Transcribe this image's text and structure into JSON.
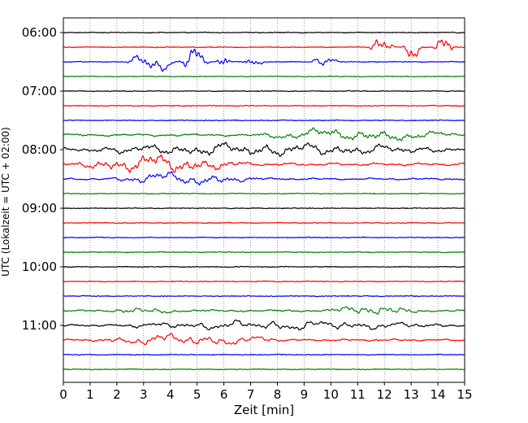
{
  "chart_data": {
    "type": "line",
    "xlabel": "Zeit  [min]",
    "ylabel": "UTC (Lokalzeit = UTC + 02:00)",
    "xlim": [
      0,
      15
    ],
    "x_ticks": [
      0,
      1,
      2,
      3,
      4,
      5,
      6,
      7,
      8,
      9,
      10,
      11,
      12,
      13,
      14,
      15
    ],
    "y_ticks": [
      "06:00",
      "07:00",
      "08:00",
      "09:00",
      "10:00",
      "11:00"
    ],
    "grid": "vertical dotted",
    "trace_interval_minutes": 15,
    "colors": {
      "black": "#000000",
      "red": "#ff0000",
      "blue": "#0000ff",
      "green": "#008000"
    },
    "traces": [
      {
        "time": "06:00",
        "color": "#000000",
        "activity": 0.0
      },
      {
        "time": "06:15",
        "color": "#ff0000",
        "activity": 0.0,
        "events": [
          [
            11.3,
            12.4,
            1.0
          ],
          [
            12.7,
            13.4,
            1.3
          ],
          [
            13.8,
            14.7,
            1.1
          ]
        ]
      },
      {
        "time": "06:30",
        "color": "#0000ff",
        "activity": 0.0,
        "events": [
          [
            2.3,
            4.2,
            0.9
          ],
          [
            4.3,
            5.5,
            1.4
          ],
          [
            5.7,
            6.3,
            1.2
          ],
          [
            6.6,
            7.5,
            0.6
          ],
          [
            9.2,
            10.3,
            0.6
          ]
        ]
      },
      {
        "time": "06:45",
        "color": "#008000",
        "activity": 0.0
      },
      {
        "time": "07:00",
        "color": "#000000",
        "activity": 0.0
      },
      {
        "time": "07:15",
        "color": "#ff0000",
        "activity": 0.0
      },
      {
        "time": "07:30",
        "color": "#0000ff",
        "activity": 0.0
      },
      {
        "time": "07:45",
        "color": "#008000",
        "activity": 0.4,
        "events": [
          [
            6.9,
            15.0,
            0.5
          ]
        ]
      },
      {
        "time": "08:00",
        "color": "#000000",
        "activity": 0.6,
        "events": [
          [
            0.0,
            15.0,
            0.45
          ]
        ]
      },
      {
        "time": "08:15",
        "color": "#ff0000",
        "activity": 0.5,
        "events": [
          [
            0.2,
            7.0,
            0.7
          ]
        ]
      },
      {
        "time": "08:30",
        "color": "#0000ff",
        "activity": 0.3,
        "events": [
          [
            1.5,
            7.5,
            0.5
          ]
        ]
      },
      {
        "time": "08:45",
        "color": "#008000",
        "activity": 0.0
      },
      {
        "time": "09:00",
        "color": "#000000",
        "activity": 0.0
      },
      {
        "time": "09:15",
        "color": "#ff0000",
        "activity": 0.0
      },
      {
        "time": "09:30",
        "color": "#0000ff",
        "activity": 0.0
      },
      {
        "time": "09:45",
        "color": "#008000",
        "activity": 0.0
      },
      {
        "time": "10:00",
        "color": "#000000",
        "activity": 0.0
      },
      {
        "time": "10:15",
        "color": "#ff0000",
        "activity": 0.0
      },
      {
        "time": "10:30",
        "color": "#0000ff",
        "activity": 0.0
      },
      {
        "time": "10:45",
        "color": "#008000",
        "activity": 0.3,
        "events": [
          [
            1.5,
            4.5,
            0.25
          ],
          [
            9.8,
            13.5,
            0.45
          ]
        ]
      },
      {
        "time": "11:00",
        "color": "#000000",
        "activity": 0.3,
        "events": [
          [
            1.5,
            15.0,
            0.35
          ]
        ]
      },
      {
        "time": "11:15",
        "color": "#ff0000",
        "activity": 0.3,
        "events": [
          [
            1.0,
            8.5,
            0.45
          ]
        ]
      },
      {
        "time": "11:30",
        "color": "#0000ff",
        "activity": 0.0
      },
      {
        "time": "11:45",
        "color": "#008000",
        "activity": 0.0
      }
    ]
  }
}
